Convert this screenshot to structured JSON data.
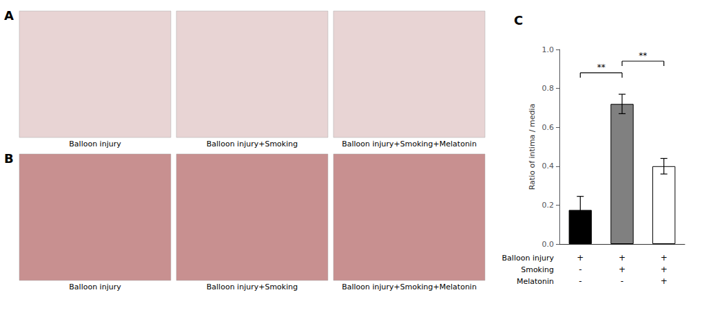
{
  "chart_data": {
    "type": "bar",
    "ylabel": "Ratio of intima / media",
    "categories": [
      null,
      null,
      null
    ],
    "values": [
      0.175,
      0.72,
      0.4
    ],
    "errors": [
      0.07,
      0.05,
      0.04
    ],
    "colors": [
      "#000000",
      "#808080",
      "#ffffff"
    ],
    "ylim": [
      0.0,
      1.0
    ],
    "yticks": [
      {
        "value": 0.0,
        "label": "0.0"
      },
      0.2,
      0.4,
      0.6,
      0.8,
      {
        "value": 1.0,
        "label": "1.0"
      }
    ],
    "grid": false,
    "tick_labels": "y",
    "annotations": {
      "panel_label": "C",
      "image_rows": [
        {
          "label": "A",
          "captions": [
            "Balloon injury",
            "Balloon injury+Smoking",
            "Balloon injury+Smoking+Melatonin"
          ]
        },
        {
          "label": "B",
          "captions": [
            "Balloon injury",
            "Balloon injury+Smoking",
            "Balloon injury+Smoking+Melatonin"
          ]
        }
      ],
      "significance": [
        {
          "from": 0,
          "to": 1,
          "label": "**"
        },
        {
          "from": 1,
          "to": 2,
          "label": "**"
        }
      ],
      "group_rows": [
        {
          "name": "Balloon injury",
          "values": [
            "+",
            "+",
            "+"
          ]
        },
        {
          "name": "Smoking",
          "values": [
            "-",
            "+",
            "+"
          ]
        },
        {
          "name": "Melatonin",
          "values": [
            "-",
            "-",
            "+"
          ]
        }
      ]
    }
  }
}
